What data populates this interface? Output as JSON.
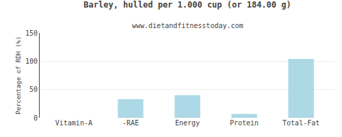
{
  "chart_data": {
    "type": "bar",
    "title": "Barley, hulled per 1.000 cup (or 184.00 g)",
    "subtitle": "www.dietandfitnesstoday.com",
    "categories": [
      "Vitamin-A",
      "-RAE",
      "Energy",
      "Protein",
      "Total-Fat"
    ],
    "values": [
      0,
      33,
      40,
      7,
      104
    ],
    "color": "#add8e6",
    "ylabel": "Percentage of RDH (%)",
    "ylim": [
      0,
      150
    ],
    "yticks": [
      0,
      50,
      100,
      150
    ],
    "grid": true
  }
}
